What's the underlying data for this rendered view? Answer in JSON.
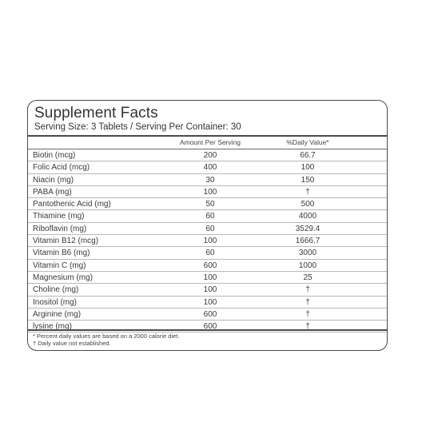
{
  "label": {
    "title": "Supplement Facts",
    "serving": "Serving Size: 3 Tablets / Serving Per Container: 30",
    "col_amount": "Amount Per Serving",
    "col_dv": "%Daily Value*"
  },
  "nutrients": [
    {
      "name": "Biotin (mcg)",
      "amount": "200",
      "dv": "66.7"
    },
    {
      "name": "Folic Acid (mcg)",
      "amount": "400",
      "dv": "100"
    },
    {
      "name": "Niacin (mg)",
      "amount": "30",
      "dv": "150"
    },
    {
      "name": "PABA (mg)",
      "amount": "100",
      "dv": "†"
    },
    {
      "name": "Pantothenic Acid (mg)",
      "amount": "50",
      "dv": "500"
    },
    {
      "name": "Thiamine (mg)",
      "amount": "60",
      "dv": "4000"
    },
    {
      "name": "Riboflavin (mg)",
      "amount": "60",
      "dv": "3529.4"
    },
    {
      "name": "Vitamin B12 (mcg)",
      "amount": "100",
      "dv": "1666.7"
    },
    {
      "name": "Vitamin B6 (mg)",
      "amount": "60",
      "dv": "3000"
    },
    {
      "name": "Vitamin C (mg)",
      "amount": "600",
      "dv": "1000"
    },
    {
      "name": "Magnesium (mg)",
      "amount": "100",
      "dv": "25"
    },
    {
      "name": "Choline (mg)",
      "amount": "100",
      "dv": "†"
    },
    {
      "name": "Inositol (mg)",
      "amount": "100",
      "dv": "†"
    },
    {
      "name": "Arginine (mg)",
      "amount": "600",
      "dv": "†"
    },
    {
      "name": "lysine (mg)",
      "amount": "600",
      "dv": "†"
    }
  ],
  "footnotes": {
    "percent_note": "* Percent daily values are based on a 2000 calorie diet.",
    "dagger_note": "† Daily value not established."
  }
}
